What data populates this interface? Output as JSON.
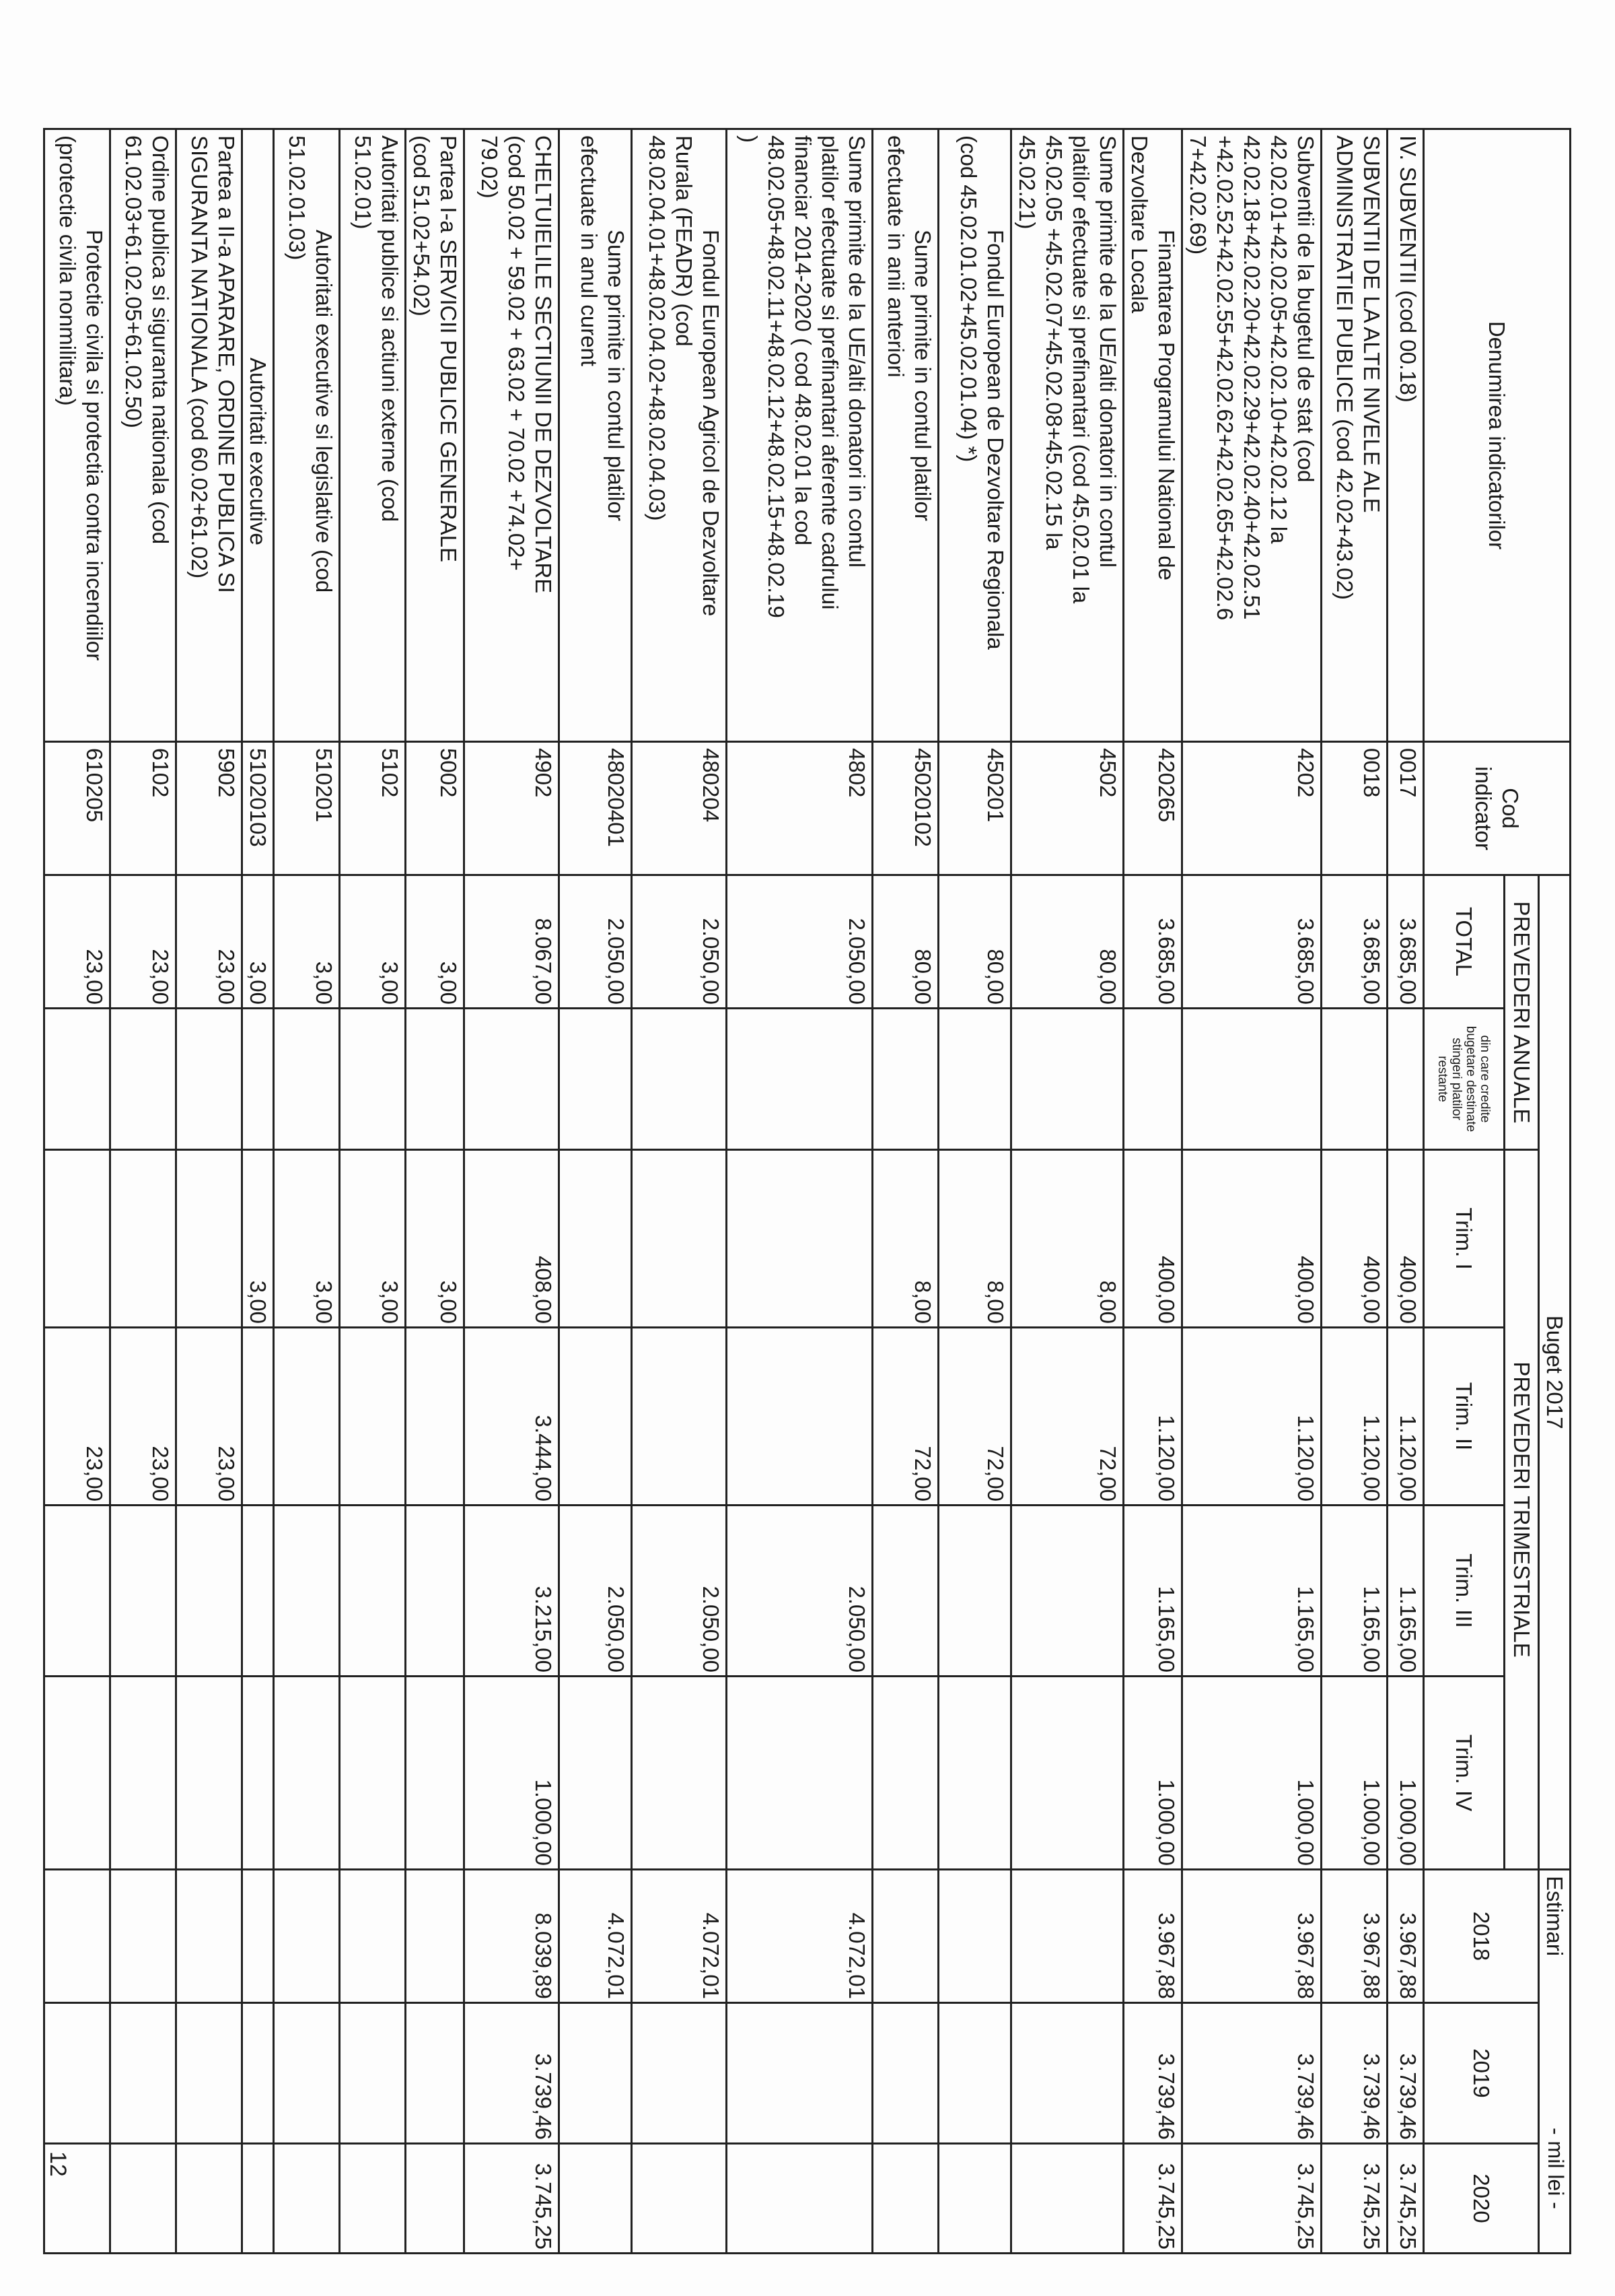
{
  "unit_label": "- mil lei -",
  "page_number": "12",
  "header": {
    "denumire": "Denumirea indicatorilor",
    "cod": "Cod indicator",
    "buget": "Buget 2017",
    "estimari": "Estimari",
    "prevederi_anuale": "PREVEDERI ANUALE",
    "prevederi_trimestriale": "PREVEDERI TRIMESTRIALE",
    "total": "TOTAL",
    "din_care": "din care credite bugetare destinate stingeri platilor restante",
    "trim1": "Trim. I",
    "trim2": "Trim. II",
    "trim3": "Trim. III",
    "trim4": "Trim. IV",
    "y2018": "2018",
    "y2019": "2019",
    "y2020": "2020"
  },
  "rows": [
    {
      "den": "IV.  SUBVENTII   (cod 00.18)",
      "cod": "0017",
      "total": "3.685,00",
      "din_care": "",
      "t1": "400,00",
      "t2": "1.120,00",
      "t3": "1.165,00",
      "t4": "1.000,00",
      "y2018": "3.967,88",
      "y2019": "3.739,46",
      "y2020": "3.745,25"
    },
    {
      "den": "SUBVENTII DE LA ALTE NIVELE ALE\nADMINISTRATIEI PUBLICE  (cod 42.02+43.02)",
      "cod": "0018",
      "total": "3.685,00",
      "din_care": "",
      "t1": "400,00",
      "t2": "1.120,00",
      "t3": "1.165,00",
      "t4": "1.000,00",
      "y2018": "3.967,88",
      "y2019": "3.739,46",
      "y2020": "3.745,25"
    },
    {
      "den": "Subventii de la bugetul de stat (cod\n42.02.01+42.02.05+42.02.10+42.02.12 la\n42.02.18+42.02.20+42.02.29+42.02.40+42.02.51\n+42.02.52+42.02.55+42.02.62+42.02.65+42.02.6\n7+42.02.69)",
      "cod": "4202",
      "total": "3.685,00",
      "din_care": "",
      "t1": "400,00",
      "t2": "1.120,00",
      "t3": "1.165,00",
      "t4": "1.000,00",
      "y2018": "3.967,88",
      "y2019": "3.739,46",
      "y2020": "3.745,25"
    },
    {
      "den": "Finantarea Programului National de\nDezvoltare Locala",
      "cod": "420265",
      "total": "3.685,00",
      "din_care": "",
      "t1": "400,00",
      "t2": "1.120,00",
      "t3": "1.165,00",
      "t4": "1.000,00",
      "y2018": "3.967,88",
      "y2019": "3.739,46",
      "y2020": "3.745,25"
    },
    {
      "den": "Sume primite de la UE/alti donatori in contul\nplatilor efectuate si prefinantari (cod 45.02.01 la\n45.02.05 +45.02.07+45.02.08+45.02.15 la\n45.02.21)",
      "cod": "4502",
      "total": "80,00",
      "din_care": "",
      "t1": "8,00",
      "t2": "72,00",
      "t3": "",
      "t4": "",
      "y2018": "",
      "y2019": "",
      "y2020": ""
    },
    {
      "den": "Fondul European de Dezvoltare Regionala\n(cod 45.02.01.02+45.02.01.04) *)",
      "cod": "450201",
      "total": "80,00",
      "din_care": "",
      "t1": "8,00",
      "t2": "72,00",
      "t3": "",
      "t4": "",
      "y2018": "",
      "y2019": "",
      "y2020": ""
    },
    {
      "den": "Sume primite in contul platilor\nefectuate in anii anteriori",
      "cod": "45020102",
      "total": "80,00",
      "din_care": "",
      "t1": "8,00",
      "t2": "72,00",
      "t3": "",
      "t4": "",
      "y2018": "",
      "y2019": "",
      "y2020": ""
    },
    {
      "den": "Sume primite de la UE/alti donatori in contul\nplatilor efectuate si prefinantari aferente cadrului\nfinanciar 2014-2020 ( cod 48.02.01 la  cod\n48.02.05+48.02.11+48.02.12+48.02.15+48.02.19\n)",
      "cod": "4802",
      "total": "2.050,00",
      "din_care": "",
      "t1": "",
      "t2": "",
      "t3": "2.050,00",
      "t4": "",
      "y2018": "4.072,01",
      "y2019": "",
      "y2020": ""
    },
    {
      "den": "Fondul European Agricol de Dezvoltare\nRurala  (FEADR)  (cod\n48.02.04.01+48.02.04.02+48.02.04.03)",
      "cod": "480204",
      "total": "2.050,00",
      "din_care": "",
      "t1": "",
      "t2": "",
      "t3": "2.050,00",
      "t4": "",
      "y2018": "4.072,01",
      "y2019": "",
      "y2020": ""
    },
    {
      "den": "Sume primite in contul platilor\nefectuate in anul curent",
      "cod": "48020401",
      "total": "2.050,00",
      "din_care": "",
      "t1": "",
      "t2": "",
      "t3": "2.050,00",
      "t4": "",
      "y2018": "4.072,01",
      "y2019": "",
      "y2020": ""
    },
    {
      "den": "CHELTUIELILE SECTIUNII DE DEZVOLTARE\n(cod 50.02 + 59.02 + 63.02 + 70.02 +74.02+\n79.02)",
      "cod": "4902",
      "total": "8.067,00",
      "din_care": "",
      "t1": "408,00",
      "t2": "3.444,00",
      "t3": "3.215,00",
      "t4": "1.000,00",
      "y2018": "8.039,89",
      "y2019": "3.739,46",
      "y2020": "3.745,25"
    },
    {
      "den": "Partea I-a SERVICII PUBLICE GENERALE\n(cod 51.02+54.02)",
      "cod": "5002",
      "total": "3,00",
      "din_care": "",
      "t1": "3,00",
      "t2": "",
      "t3": "",
      "t4": "",
      "y2018": "",
      "y2019": "",
      "y2020": ""
    },
    {
      "den": "Autoritati publice si actiuni externe   (cod\n51.02.01)",
      "cod": "5102",
      "total": "3,00",
      "din_care": "",
      "t1": "3,00",
      "t2": "",
      "t3": "",
      "t4": "",
      "y2018": "",
      "y2019": "",
      "y2020": ""
    },
    {
      "den": "Autoritati executive si legislative   (cod\n51.02.01.03)",
      "cod": "510201",
      "total": "3,00",
      "din_care": "",
      "t1": "3,00",
      "t2": "",
      "t3": "",
      "t4": "",
      "y2018": "",
      "y2019": "",
      "y2020": ""
    },
    {
      "den": "Autoritati executive",
      "cod": "51020103",
      "total": "3,00",
      "din_care": "",
      "t1": "3,00",
      "t2": "",
      "t3": "",
      "t4": "",
      "y2018": "",
      "y2019": "",
      "y2020": ""
    },
    {
      "den": "Partea a II-a APARARE, ORDINE PUBLICA SI\nSIGURANTA NATIONALA    (cod 60.02+61.02)",
      "cod": "5902",
      "total": "23,00",
      "din_care": "",
      "t1": "",
      "t2": "23,00",
      "t3": "",
      "t4": "",
      "y2018": "",
      "y2019": "",
      "y2020": ""
    },
    {
      "den": "Ordine publica si siguranta nationala   (cod\n61.02.03+61.02.05+61.02.50)",
      "cod": "6102",
      "total": "23,00",
      "din_care": "",
      "t1": "",
      "t2": "23,00",
      "t3": "",
      "t4": "",
      "y2018": "",
      "y2019": "",
      "y2020": ""
    },
    {
      "den": "Protectie civila si protectia contra incendiilor\n(protectie civila nonmilitara)",
      "cod": "610205",
      "total": "23,00",
      "din_care": "",
      "t1": "",
      "t2": "23,00",
      "t3": "",
      "t4": "",
      "y2018": "",
      "y2019": "",
      "y2020": ""
    }
  ]
}
